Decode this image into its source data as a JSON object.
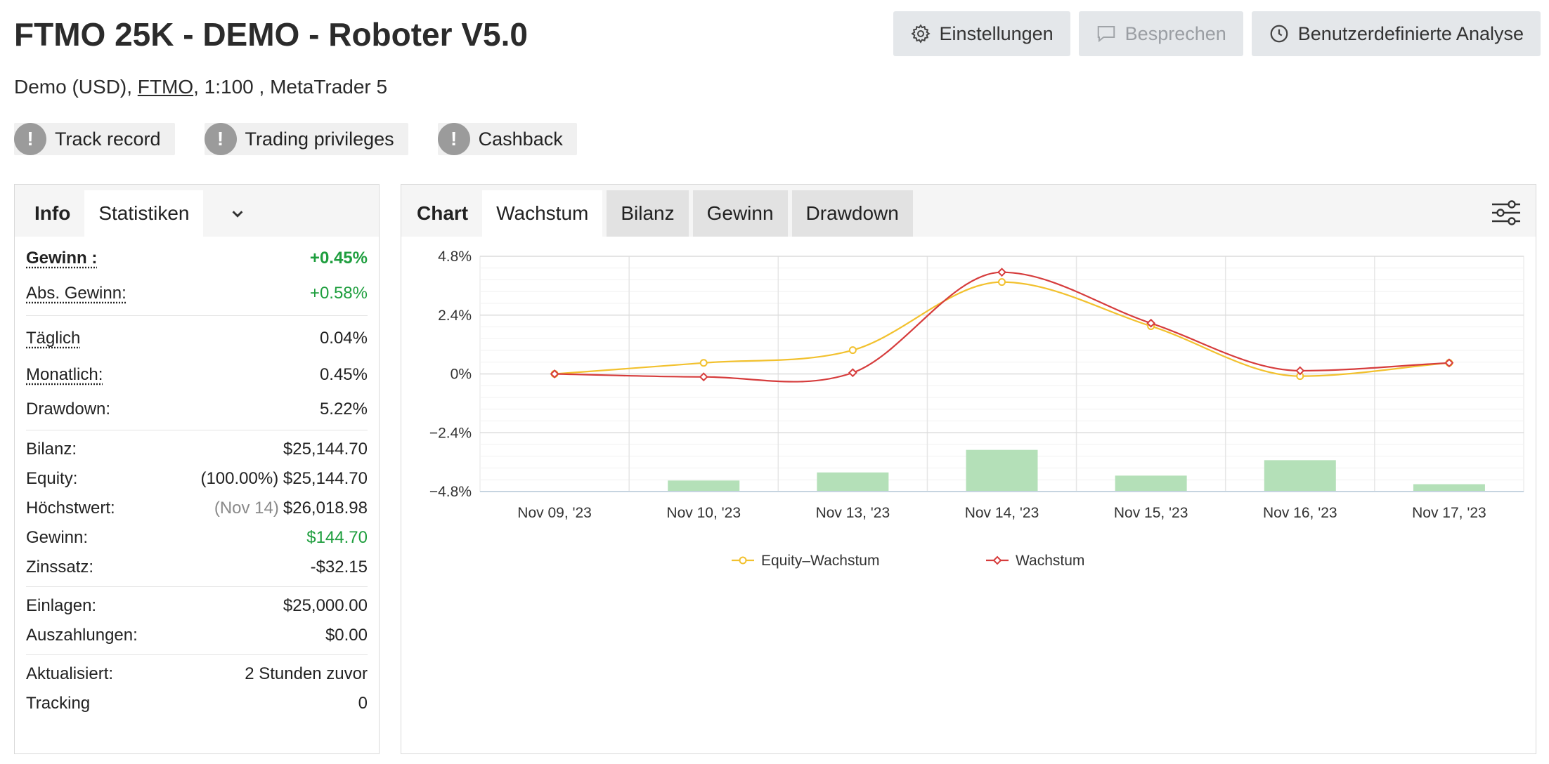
{
  "header": {
    "title": "FTMO 25K - DEMO - Roboter V5.0",
    "subtitle_prefix": "Demo (USD), ",
    "broker_link": "FTMO",
    "subtitle_suffix": ", 1:100 , MetaTrader 5",
    "buttons": [
      {
        "label": "Einstellungen",
        "icon": "gear-icon",
        "disabled": false
      },
      {
        "label": "Besprechen",
        "icon": "comment-icon",
        "disabled": true
      },
      {
        "label": "Benutzerdefinierte Analyse",
        "icon": "clock-icon",
        "disabled": false
      }
    ]
  },
  "badges": [
    {
      "label": "Track record",
      "icon": "exclamation-icon"
    },
    {
      "label": "Trading privileges",
      "icon": "exclamation-icon"
    },
    {
      "label": "Cashback",
      "icon": "exclamation-icon"
    }
  ],
  "left_panel": {
    "tabs": {
      "info": "Info",
      "stats": "Statistiken",
      "more_icon": "chevron-down-icon"
    },
    "gain_label": "Gewinn :",
    "gain_value": "+0.45%",
    "abs_gain_label": "Abs. Gewinn:",
    "abs_gain_value": "+0.58%",
    "daily_label": "Täglich",
    "daily_value": "0.04%",
    "monthly_label": "Monatlich:",
    "monthly_value": "0.45%",
    "drawdown_label": "Drawdown:",
    "drawdown_value": "5.22%",
    "balance_label": "Bilanz:",
    "balance_value": "$25,144.70",
    "equity_label": "Equity:",
    "equity_pct": "(100.00%)",
    "equity_value": "$25,144.70",
    "highest_label": "Höchstwert:",
    "highest_date": "(Nov 14)",
    "highest_value": "$26,018.98",
    "profit_label": "Gewinn:",
    "profit_value": "$144.70",
    "interest_label": "Zinssatz:",
    "interest_value": "-$32.15",
    "deposits_label": "Einlagen:",
    "deposits_value": "$25,000.00",
    "withdrawals_label": "Auszahlungen:",
    "withdrawals_value": "$0.00",
    "updated_label": "Aktualisiert:",
    "updated_value": "2 Stunden zuvor",
    "tracking_label": "Tracking",
    "tracking_value": "0"
  },
  "right_panel": {
    "label": "Chart",
    "tabs": [
      "Wachstum",
      "Bilanz",
      "Gewinn",
      "Drawdown"
    ],
    "active_tab": "Wachstum",
    "settings_icon": "sliders-icon"
  },
  "chart_data": {
    "type": "line",
    "x": [
      "Nov 09, '23",
      "Nov 10, '23",
      "Nov 13, '23",
      "Nov 14, '23",
      "Nov 15, '23",
      "Nov 16, '23",
      "Nov 17, '23"
    ],
    "ylim": [
      -4.8,
      4.8
    ],
    "yticks": [
      4.8,
      2.4,
      0,
      -2.4,
      -4.8
    ],
    "ytick_labels": [
      "4.8%",
      "2.4%",
      "0%",
      "−2.4%",
      "−4.8%"
    ],
    "series": [
      {
        "name": "Equity–Wachstum",
        "color": "#f2c12e",
        "values": [
          0.0,
          0.45,
          0.97,
          3.75,
          1.95,
          -0.09,
          0.45
        ]
      },
      {
        "name": "Wachstum",
        "color": "#d63c3c",
        "values": [
          0.0,
          -0.12,
          0.05,
          4.15,
          2.07,
          0.13,
          0.45
        ]
      }
    ],
    "volume_bars": {
      "color": "#b4e0b8",
      "values": [
        0,
        0.45,
        0.78,
        1.7,
        0.65,
        1.28,
        0.3
      ]
    },
    "grid": true,
    "legend_position": "bottom-center"
  }
}
